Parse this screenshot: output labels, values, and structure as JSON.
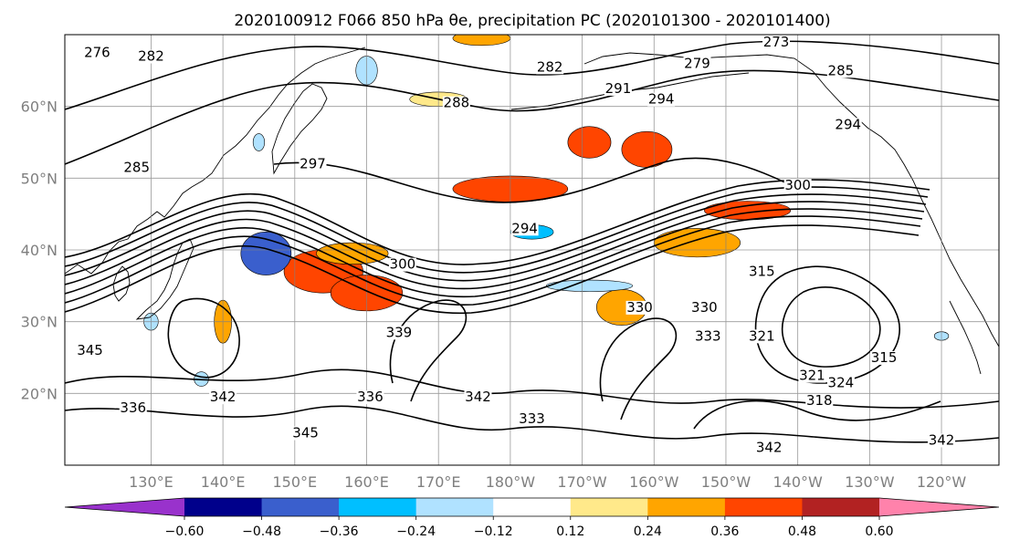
{
  "title": "2020100912 F066 850 hPa θe, precipitation PC (2020101300 - 2020101400)",
  "map": {
    "lon_labels": [
      "130°E",
      "140°E",
      "150°E",
      "160°E",
      "170°E",
      "180°W",
      "170°W",
      "160°W",
      "150°W",
      "140°W",
      "130°W",
      "120°W"
    ],
    "lat_labels": [
      "60°N",
      "50°N",
      "40°N",
      "30°N",
      "20°N"
    ],
    "lon_range_deg_east": [
      118,
      248
    ],
    "lat_range_deg": [
      10,
      70
    ],
    "grid": true,
    "contour_variable": "850 hPa equivalent potential temperature (K)",
    "contour_labels": [
      {
        "text": "276",
        "lon": 122.5,
        "lat": 67
      },
      {
        "text": "282",
        "lon": 130,
        "lat": 66.5
      },
      {
        "text": "285",
        "lon": 128,
        "lat": 51
      },
      {
        "text": "297",
        "lon": 152.5,
        "lat": 51.5
      },
      {
        "text": "294",
        "lon": 182,
        "lat": 42.5
      },
      {
        "text": "282",
        "lon": 185.5,
        "lat": 65
      },
      {
        "text": "288",
        "lon": 172.5,
        "lat": 60
      },
      {
        "text": "273",
        "lon": 217,
        "lat": 68.5
      },
      {
        "text": "279",
        "lon": 206,
        "lat": 65.5
      },
      {
        "text": "291",
        "lon": 195,
        "lat": 62
      },
      {
        "text": "294",
        "lon": 201,
        "lat": 60.5
      },
      {
        "text": "285",
        "lon": 226,
        "lat": 64.5
      },
      {
        "text": "294",
        "lon": 227,
        "lat": 57
      },
      {
        "text": "300",
        "lon": 220,
        "lat": 48.5
      },
      {
        "text": "300",
        "lon": 165,
        "lat": 37.5
      },
      {
        "text": "315",
        "lon": 215,
        "lat": 36.5
      },
      {
        "text": "330",
        "lon": 198,
        "lat": 31.5
      },
      {
        "text": "330",
        "lon": 207,
        "lat": 31.5
      },
      {
        "text": "333",
        "lon": 207.5,
        "lat": 27.5
      },
      {
        "text": "321",
        "lon": 215,
        "lat": 27.5
      },
      {
        "text": "315",
        "lon": 232,
        "lat": 24.5
      },
      {
        "text": "321",
        "lon": 222,
        "lat": 22
      },
      {
        "text": "324",
        "lon": 226,
        "lat": 21
      },
      {
        "text": "318",
        "lon": 223,
        "lat": 18.5
      },
      {
        "text": "339",
        "lon": 164.5,
        "lat": 28
      },
      {
        "text": "336",
        "lon": 160.5,
        "lat": 19
      },
      {
        "text": "342",
        "lon": 175.5,
        "lat": 19
      },
      {
        "text": "342",
        "lon": 140,
        "lat": 19
      },
      {
        "text": "336",
        "lon": 127.5,
        "lat": 17.5
      },
      {
        "text": "345",
        "lon": 121.5,
        "lat": 25.5
      },
      {
        "text": "345",
        "lon": 151.5,
        "lat": 14
      },
      {
        "text": "333",
        "lon": 183,
        "lat": 16
      },
      {
        "text": "342",
        "lon": 216,
        "lat": 12
      },
      {
        "text": "342",
        "lon": 240,
        "lat": 13
      }
    ],
    "shading_variable": "precipitation PC",
    "shaded_regions": [
      {
        "level": 0.42,
        "center_lon": 154,
        "center_lat": 37,
        "radius_lon": 5.5,
        "radius_lat": 3
      },
      {
        "level": 0.3,
        "center_lon": 158,
        "center_lat": 39.5,
        "radius_lon": 5,
        "radius_lat": 1.5
      },
      {
        "level": 0.36,
        "center_lon": 160,
        "center_lat": 34,
        "radius_lon": 5,
        "radius_lat": 2.5
      },
      {
        "level": 0.36,
        "center_lon": 180,
        "center_lat": 48.5,
        "radius_lon": 8,
        "radius_lat": 1.8
      },
      {
        "level": 0.42,
        "center_lon": 191,
        "center_lat": 55,
        "radius_lon": 3,
        "radius_lat": 2.2
      },
      {
        "level": 0.36,
        "center_lon": 199,
        "center_lat": 54,
        "radius_lon": 3.5,
        "radius_lat": 2.5
      },
      {
        "level": 0.3,
        "center_lon": 176,
        "center_lat": 69.5,
        "radius_lon": 4,
        "radius_lat": 1
      },
      {
        "level": 0.18,
        "center_lon": 170,
        "center_lat": 61,
        "radius_lon": 4,
        "radius_lat": 1
      },
      {
        "level": 0.3,
        "center_lon": 206,
        "center_lat": 41,
        "radius_lon": 6,
        "radius_lat": 2
      },
      {
        "level": 0.36,
        "center_lon": 213,
        "center_lat": 45.5,
        "radius_lon": 6,
        "radius_lat": 1.3
      },
      {
        "level": 0.3,
        "center_lon": 195.5,
        "center_lat": 32,
        "radius_lon": 3.5,
        "radius_lat": 2.5
      },
      {
        "level": 0.24,
        "center_lon": 140,
        "center_lat": 30,
        "radius_lon": 1.2,
        "radius_lat": 3
      },
      {
        "level": -0.42,
        "center_lon": 146,
        "center_lat": 39.5,
        "radius_lon": 3.5,
        "radius_lat": 3
      },
      {
        "level": -0.3,
        "center_lon": 183,
        "center_lat": 42.5,
        "radius_lon": 3,
        "radius_lat": 1
      },
      {
        "level": -0.18,
        "center_lon": 191,
        "center_lat": 35,
        "radius_lon": 6,
        "radius_lat": 0.8
      },
      {
        "level": -0.24,
        "center_lon": 160,
        "center_lat": 65,
        "radius_lon": 1.5,
        "radius_lat": 2
      },
      {
        "level": -0.24,
        "center_lon": 145,
        "center_lat": 55,
        "radius_lon": 0.8,
        "radius_lat": 1.2
      },
      {
        "level": -0.18,
        "center_lon": 130,
        "center_lat": 30,
        "radius_lon": 1,
        "radius_lat": 1.2
      },
      {
        "level": -0.24,
        "center_lon": 240,
        "center_lat": 28,
        "radius_lon": 1,
        "radius_lat": 0.6
      },
      {
        "level": -0.24,
        "center_lon": 137,
        "center_lat": 22,
        "radius_lon": 1,
        "radius_lat": 1
      }
    ]
  },
  "colorbar": {
    "tick_labels": [
      "−0.60",
      "−0.48",
      "−0.36",
      "−0.24",
      "−0.12",
      "0.12",
      "0.24",
      "0.36",
      "0.48",
      "0.60"
    ],
    "boundaries": [
      -0.6,
      -0.48,
      -0.36,
      -0.24,
      -0.12,
      0.12,
      0.24,
      0.36,
      0.48,
      0.6
    ],
    "colors": [
      "#9932cc",
      "#00008b",
      "#3a5fcd",
      "#00bfff",
      "#b0e2ff",
      "#ffffff",
      "#ffe98a",
      "#ffa500",
      "#ff4500",
      "#b22222",
      "#ff82ab"
    ],
    "extend": "both"
  },
  "chart_data": {
    "type": "heatmap",
    "title": "2020100912 F066 850 hPa θe, precipitation PC (2020101300 - 2020101400)",
    "xlabel": "",
    "ylabel": "",
    "x_ticks": [
      "130°E",
      "140°E",
      "150°E",
      "160°E",
      "170°E",
      "180°W",
      "170°W",
      "160°W",
      "150°W",
      "140°W",
      "130°W",
      "120°W"
    ],
    "y_ticks": [
      "60°N",
      "50°N",
      "40°N",
      "30°N",
      "20°N"
    ],
    "xlim_deg_east": [
      118,
      248
    ],
    "ylim_deg": [
      10,
      70
    ],
    "colorbar_levels": [
      -0.6,
      -0.48,
      -0.36,
      -0.24,
      -0.12,
      0.12,
      0.24,
      0.36,
      0.48,
      0.6
    ],
    "contour_labels_K": [
      273,
      276,
      279,
      282,
      285,
      288,
      291,
      294,
      297,
      300,
      315,
      318,
      321,
      324,
      330,
      333,
      336,
      339,
      342,
      345
    ],
    "grid": true,
    "legend": "colorbar-bottom"
  }
}
